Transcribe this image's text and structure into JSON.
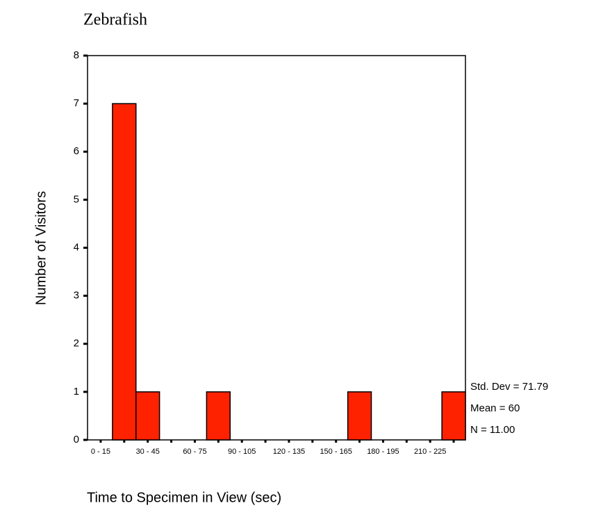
{
  "chart_data": {
    "type": "histogram",
    "title": "Zebrafish",
    "x_label": "Time to Specimen in View (sec)",
    "y_label": "Number of Visitors",
    "bins": [
      0,
      15,
      30,
      45,
      60,
      75,
      90,
      105,
      120,
      135,
      150,
      165,
      180,
      195,
      210,
      225,
      240
    ],
    "counts": [
      0,
      7,
      1,
      0,
      0,
      1,
      0,
      0,
      0,
      0,
      0,
      1,
      0,
      0,
      0,
      1
    ],
    "color": "#ff2200",
    "xlim": [
      0,
      240
    ],
    "ylim": [
      0,
      8
    ],
    "yticks": [
      0,
      1,
      2,
      3,
      4,
      5,
      6,
      7,
      8
    ],
    "xticks": [
      {
        "value": 7.5,
        "label": "0 - 15"
      },
      {
        "value": 37.5,
        "label": "30 - 45"
      },
      {
        "value": 67.5,
        "label": "60 - 75"
      },
      {
        "value": 97.5,
        "label": "90 - 105"
      },
      {
        "value": 127.5,
        "label": "120 - 135"
      },
      {
        "value": 157.5,
        "label": "150 - 165"
      },
      {
        "value": 187.5,
        "label": "180 - 195"
      },
      {
        "value": 217.5,
        "label": "210 - 225"
      }
    ],
    "annotations": [
      "Std. Dev = 71.79",
      "Mean = 60",
      "N = 11.00"
    ]
  }
}
